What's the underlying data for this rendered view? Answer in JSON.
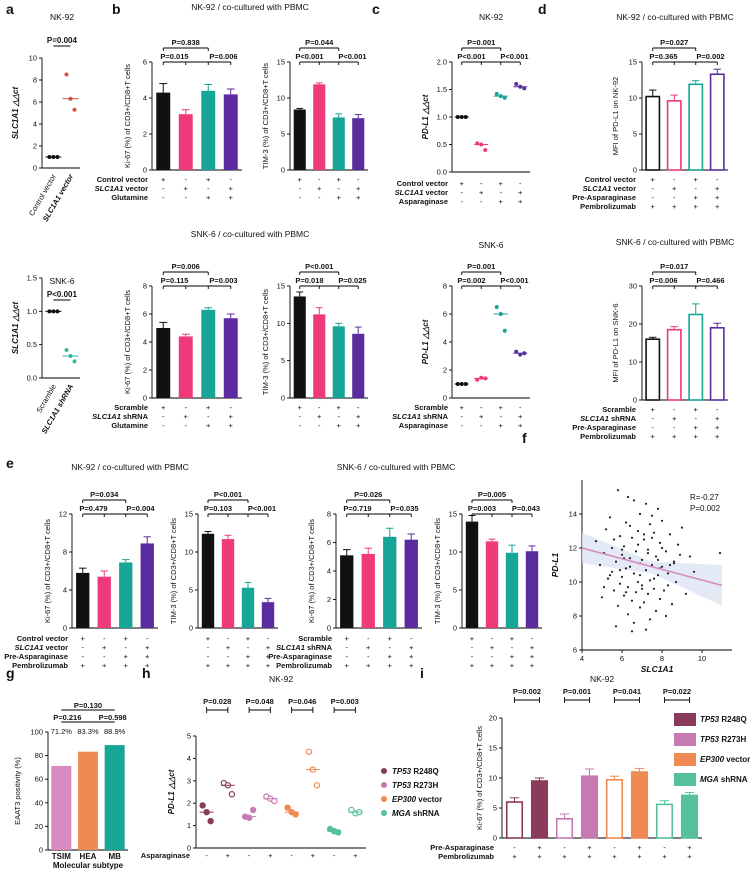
{
  "colors": {
    "black": "#111111",
    "pink": "#ee3a7a",
    "teal": "#16a597",
    "purple": "#5b2c9f",
    "red": "#d2553a",
    "cyan": "#35b8a6",
    "lightpink": "#d98ac0",
    "salmon": "#ef8a52",
    "maroon": "#8a3a5a",
    "mauve": "#c779b2",
    "orange": "#ef8a52",
    "green": "#55c09c"
  },
  "panels": {
    "a": "a",
    "b": "b",
    "c": "c",
    "d": "d",
    "e": "e",
    "f": "f",
    "g": "g",
    "h": "h",
    "i": "i"
  },
  "a": {
    "top": {
      "title": "NK-92",
      "ylabel": "SLC1A1 △△ct",
      "yticks": [
        "0",
        "2",
        "4",
        "6",
        "8",
        "10"
      ],
      "pvalue": "P=0.004",
      "groups": [
        "Control vector",
        "SLC1A1 vector"
      ],
      "points": [
        [
          1,
          1,
          1
        ],
        [
          8.5,
          6.3,
          5.3
        ]
      ],
      "medians": [
        1,
        6.3
      ]
    },
    "bottom": {
      "title": "SNK-6",
      "ylabel": "SLC1A1 △△ct",
      "yticks": [
        "0.0",
        "0.5",
        "1.0",
        "1.5"
      ],
      "pvalue": "P<0.001",
      "groups": [
        "Scramble",
        "SLC1A1 shRNA"
      ],
      "points": [
        [
          1,
          1,
          1
        ],
        [
          0.42,
          0.33,
          0.25
        ]
      ],
      "medians": [
        1,
        0.33
      ]
    }
  },
  "b": {
    "top_title": "NK-92 / co-cultured with PBMC",
    "bottom_title": "SNK-6 / co-cultured with PBMC",
    "ki67_top": {
      "ylabel": "Ki-67 (%) of CD3+/CD8+T cells",
      "yticks": [
        "0",
        "2",
        "4",
        "6"
      ],
      "values": [
        4.3,
        3.1,
        4.4,
        4.2
      ],
      "errors": [
        0.5,
        0.25,
        0.35,
        0.3
      ],
      "p_top": "P=0.838",
      "p_left": "P=0.015",
      "p_right": "P=0.006"
    },
    "tim3_top": {
      "ylabel": "TIM-3 (%) of CD3+/CD8+T cells",
      "yticks": [
        "0",
        "5",
        "10",
        "15"
      ],
      "values": [
        8.4,
        11.9,
        7.3,
        7.2
      ],
      "errors": [
        0.15,
        0.2,
        0.5,
        0.5
      ],
      "p_top": "P=0.044",
      "p_left": "P<0.001",
      "p_right": "P<0.001"
    },
    "ki67_bot": {
      "ylabel": "Ki-67 (%) of CD3+/CD8+T cells",
      "yticks": [
        "0",
        "2",
        "4",
        "6",
        "8"
      ],
      "values": [
        5.0,
        4.4,
        6.3,
        5.7
      ],
      "errors": [
        0.4,
        0.15,
        0.15,
        0.3
      ],
      "p_top": "P=0.006",
      "p_left": "P=0.115",
      "p_right": "P=0.003"
    },
    "tim3_bot": {
      "ylabel": "TIM-3 (%) of CD3+/CD8+T cells",
      "yticks": [
        "0",
        "5",
        "10",
        "15"
      ],
      "values": [
        13.6,
        11.2,
        9.6,
        8.6
      ],
      "errors": [
        0.6,
        0.9,
        0.4,
        0.9
      ],
      "p_top": "P<0.001",
      "p_left": "P=0.018",
      "p_right": "P=0.025"
    },
    "rows_top": [
      "Control vector",
      "SLC1A1 vector",
      "Glutamine"
    ],
    "rows_bot": [
      "Scramble",
      "SLC1A1 shRNA",
      "Glutamine"
    ],
    "signs": [
      [
        "+",
        "-",
        "+",
        "-"
      ],
      [
        "-",
        "+",
        "-",
        "+"
      ],
      [
        "-",
        "-",
        "+",
        "+"
      ]
    ]
  },
  "c": {
    "top": {
      "title": "NK-92",
      "ylabel": "PD-L1 △△ct",
      "yticks": [
        "0.0",
        "0.5",
        "1.0",
        "1.5",
        "2.0"
      ],
      "p_top": "P=0.001",
      "p_left": "P<0.001",
      "p_right": "P<0.001",
      "points": [
        [
          1,
          1,
          1
        ],
        [
          0.52,
          0.5,
          0.4
        ],
        [
          1.42,
          1.38,
          1.35
        ],
        [
          1.6,
          1.55,
          1.52
        ]
      ],
      "medians": [
        1,
        0.5,
        1.38,
        1.55
      ],
      "rows": [
        "Control vector",
        "SLC1A1 vector",
        "Asparaginase"
      ],
      "signs": [
        [
          "+",
          "-",
          "+",
          "-"
        ],
        [
          "-",
          "+",
          "-",
          "+"
        ],
        [
          "-",
          "-",
          "+",
          "+"
        ]
      ]
    },
    "bottom": {
      "title": "SNK-6",
      "ylabel": "PD-L1 △△ct",
      "yticks": [
        "0",
        "2",
        "4",
        "6",
        "8"
      ],
      "p_top": "P=0.001",
      "p_left": "P=0.002",
      "p_right": "P<0.001",
      "points": [
        [
          1,
          1,
          1
        ],
        [
          1.3,
          1.45,
          1.4
        ],
        [
          6.5,
          6.0,
          4.8
        ],
        [
          3.3,
          3.1,
          3.2
        ]
      ],
      "medians": [
        1,
        1.4,
        6.0,
        3.2
      ],
      "rows": [
        "Scramble",
        "SLC1A1 shRNA",
        "Asparaginase"
      ],
      "signs": [
        [
          "+",
          "-",
          "+",
          "-"
        ],
        [
          "-",
          "+",
          "-",
          "+"
        ],
        [
          "-",
          "-",
          "+",
          "+"
        ]
      ]
    }
  },
  "d": {
    "top": {
      "title": "NK-92 / co-cultured with PBMC",
      "ylabel": "MFI of PD-L1 on NK-92",
      "yticks": [
        "0",
        "5",
        "10",
        "15"
      ],
      "values": [
        10.2,
        9.6,
        11.9,
        13.3
      ],
      "errors": [
        0.9,
        0.8,
        0.5,
        0.7
      ],
      "p_top": "P=0.027",
      "p_left": "P=0.365",
      "p_right": "P=0.002",
      "rows": [
        "Control vector",
        "SLC1A1 vector",
        "Pre-Asparaginase",
        "Pembrolizumab"
      ]
    },
    "bottom": {
      "title": "SNK-6 / co-cultured with PBMC",
      "ylabel": "MFI of PD-L1 on SNK-6",
      "yticks": [
        "0",
        "10",
        "20",
        "30"
      ],
      "values": [
        16.0,
        18.5,
        22.5,
        19.0
      ],
      "errors": [
        0.5,
        0.8,
        2.8,
        1.2
      ],
      "p_top": "P=0.017",
      "p_left": "P=0.006",
      "p_right": "P=0.466",
      "rows": [
        "Scramble",
        "SLC1A1 shRNA",
        "Pre-Asparaginase",
        "Pembrolizumab"
      ]
    },
    "signs": [
      [
        "+",
        "-",
        "+",
        "-"
      ],
      [
        "-",
        "+",
        "-",
        "+"
      ],
      [
        "-",
        "-",
        "+",
        "+"
      ],
      [
        "+",
        "+",
        "+",
        "+"
      ]
    ]
  },
  "e": {
    "left_title": "NK-92 / co-cultured with PBMC",
    "right_title": "SNK-6 / co-cultured with PBMC",
    "ki67_l": {
      "ylabel": "Ki-67 (%) of CD3+/CD8+T cells",
      "yticks": [
        "0",
        "4",
        "8",
        "12"
      ],
      "values": [
        5.8,
        5.4,
        6.9,
        8.9
      ],
      "errors": [
        0.5,
        0.6,
        0.3,
        0.7
      ],
      "p_top": "P=0.034",
      "p_left": "P=0.479",
      "p_right": "P=0.004"
    },
    "tim3_l": {
      "ylabel": "TIM-3 (%) of CD3+/CD8+T cells",
      "yticks": [
        "0",
        "5",
        "10",
        "15"
      ],
      "values": [
        12.4,
        11.7,
        5.3,
        3.4
      ],
      "errors": [
        0.3,
        0.5,
        0.7,
        0.5
      ],
      "p_top": "P<0.001",
      "p_left": "P=0.103",
      "p_right": "P<0.001"
    },
    "ki67_r": {
      "ylabel": "Ki-67 (%) of CD3+/CD8+T cells",
      "yticks": [
        "0",
        "2",
        "4",
        "6",
        "8"
      ],
      "values": [
        5.1,
        5.2,
        6.4,
        6.2
      ],
      "errors": [
        0.4,
        0.4,
        0.6,
        0.4
      ],
      "p_top": "P=0.026",
      "p_left": "P=0.719",
      "p_right": "P=0.035"
    },
    "tim3_r": {
      "ylabel": "TIM-3 (%) of CD3+/CD8+T cells",
      "yticks": [
        "0",
        "5",
        "10",
        "15"
      ],
      "values": [
        14.0,
        11.4,
        9.9,
        10.1
      ],
      "errors": [
        0.8,
        0.3,
        1.0,
        0.7
      ],
      "p_top": "P=0.005",
      "p_left": "P=0.003",
      "p_right": "P=0.043"
    },
    "rows_l": [
      "Control vector",
      "SLC1A1 vector",
      "Pre-Asparaginase",
      "Pembrolizumab"
    ],
    "rows_r": [
      "Scramble",
      "SLC1A1 shRNA",
      "Pre-Asparaginase",
      "Pembrolizumab"
    ],
    "signs": [
      [
        "+",
        "-",
        "+",
        "-"
      ],
      [
        "-",
        "+",
        "-",
        "+"
      ],
      [
        "-",
        "-",
        "+",
        "+"
      ],
      [
        "+",
        "+",
        "+",
        "+"
      ]
    ]
  },
  "f": {
    "r_label": "R=-0.27",
    "p_label": "P=0.002",
    "xlabel": "SLC1A1",
    "ylabel": "PD-L1",
    "xticks": [
      "4",
      "6",
      "8",
      "10"
    ],
    "yticks": [
      "6",
      "8",
      "10",
      "12",
      "14"
    ],
    "xlim": [
      4,
      11.5
    ],
    "ylim": [
      6,
      16
    ],
    "fit": [
      [
        4,
        12.0
      ],
      [
        11,
        9.8
      ]
    ],
    "points": [
      [
        5.8,
        15.4
      ],
      [
        6.3,
        15.0
      ],
      [
        6.6,
        14.8
      ],
      [
        7.2,
        14.6
      ],
      [
        7.8,
        14.3
      ],
      [
        6.9,
        14.0
      ],
      [
        7.5,
        13.9
      ],
      [
        5.4,
        13.8
      ],
      [
        8.0,
        13.6
      ],
      [
        6.2,
        13.5
      ],
      [
        7.4,
        13.4
      ],
      [
        9.0,
        13.2
      ],
      [
        5.2,
        13.1
      ],
      [
        6.8,
        13.0
      ],
      [
        7.6,
        12.9
      ],
      [
        8.4,
        12.8
      ],
      [
        5.9,
        12.7
      ],
      [
        6.5,
        12.6
      ],
      [
        7.1,
        12.5
      ],
      [
        4.7,
        12.4
      ],
      [
        7.9,
        12.3
      ],
      [
        8.8,
        12.2
      ],
      [
        6.1,
        12.1
      ],
      [
        5.5,
        12.0
      ],
      [
        7.3,
        11.9
      ],
      [
        6.7,
        11.8
      ],
      [
        8.2,
        11.8
      ],
      [
        5.1,
        11.7
      ],
      [
        6.0,
        11.6
      ],
      [
        7.7,
        11.5
      ],
      [
        9.4,
        11.5
      ],
      [
        6.4,
        11.4
      ],
      [
        7.0,
        11.3
      ],
      [
        5.7,
        11.2
      ],
      [
        8.6,
        11.2
      ],
      [
        6.9,
        11.1
      ],
      [
        7.5,
        11.0
      ],
      [
        4.9,
        11.0
      ],
      [
        8.0,
        10.9
      ],
      [
        6.2,
        10.8
      ],
      [
        7.2,
        10.7
      ],
      [
        5.5,
        10.6
      ],
      [
        6.6,
        10.5
      ],
      [
        8.3,
        10.5
      ],
      [
        7.8,
        10.4
      ],
      [
        6.0,
        10.3
      ],
      [
        5.3,
        10.2
      ],
      [
        7.4,
        10.1
      ],
      [
        6.8,
        10.0
      ],
      [
        8.7,
        10.0
      ],
      [
        5.9,
        9.9
      ],
      [
        7.0,
        9.8
      ],
      [
        6.3,
        9.7
      ],
      [
        7.6,
        9.6
      ],
      [
        5.6,
        9.5
      ],
      [
        8.1,
        9.5
      ],
      [
        6.7,
        9.4
      ],
      [
        7.3,
        9.3
      ],
      [
        9.2,
        9.3
      ],
      [
        6.1,
        9.2
      ],
      [
        5.0,
        9.1
      ],
      [
        7.9,
        9.0
      ],
      [
        6.5,
        8.9
      ],
      [
        7.1,
        8.8
      ],
      [
        8.5,
        8.7
      ],
      [
        5.8,
        8.6
      ],
      [
        6.9,
        8.5
      ],
      [
        7.7,
        8.3
      ],
      [
        6.3,
        8.1
      ],
      [
        8.2,
        8.0
      ],
      [
        7.4,
        7.8
      ],
      [
        6.6,
        7.6
      ],
      [
        5.7,
        7.4
      ],
      [
        7.2,
        7.2
      ],
      [
        6.0,
        11.9
      ],
      [
        8.9,
        11.6
      ],
      [
        7.5,
        12.6
      ],
      [
        6.4,
        10.9
      ],
      [
        5.4,
        10.4
      ],
      [
        7.0,
        9.6
      ],
      [
        8.6,
        11.1
      ],
      [
        6.8,
        12.2
      ],
      [
        7.6,
        10.2
      ],
      [
        5.9,
        10.7
      ],
      [
        6.2,
        9.4
      ],
      [
        8.0,
        12.0
      ],
      [
        10.9,
        11.7
      ],
      [
        7.3,
        11.7
      ],
      [
        6.5,
        7.1
      ],
      [
        7.8,
        11.3
      ],
      [
        5.1,
        9.7
      ],
      [
        6.9,
        10.4
      ],
      [
        8.3,
        9.8
      ],
      [
        6.1,
        11.4
      ],
      [
        7.1,
        12.8
      ],
      [
        9.6,
        10.6
      ],
      [
        5.6,
        12.5
      ],
      [
        7.9,
        10.8
      ],
      [
        6.4,
        13.3
      ],
      [
        8.4,
        11.0
      ]
    ]
  },
  "g": {
    "ylabel": "EAAT3 positivity (%)",
    "xlabel": "Molecular subtype",
    "categories": [
      "TSIM",
      "HEA",
      "MB"
    ],
    "values": [
      71.2,
      83.3,
      88.9
    ],
    "value_labels": [
      "71.2%",
      "83.3%",
      "88.9%"
    ],
    "yticks": [
      "0",
      "20",
      "40",
      "60",
      "80",
      "100"
    ],
    "p_top": "P=0.130",
    "p_left": "P=0.216",
    "p_right": "P=0.598"
  },
  "h": {
    "title": "NK-92",
    "ylabel": "PD-L1 △△ct",
    "yticks": [
      "0",
      "1",
      "2",
      "3",
      "4",
      "5"
    ],
    "xrow_label": "Asparaginase",
    "signs": [
      "-",
      "+",
      "-",
      "+",
      "-",
      "+",
      "-",
      "+"
    ],
    "pvalues": [
      "P=0.028",
      "P=0.048",
      "P=0.046",
      "P=0.003"
    ],
    "legend": [
      "TP53 R248Q",
      "TP53 R273H",
      "EP300 vector",
      "MGA shRNA"
    ],
    "points": [
      [
        1.9,
        1.6,
        1.2
      ],
      [
        2.9,
        2.8,
        2.4
      ],
      [
        1.4,
        1.35,
        1.7
      ],
      [
        2.3,
        2.2,
        2.1
      ],
      [
        1.8,
        1.6,
        1.5
      ],
      [
        4.3,
        3.5,
        2.8
      ],
      [
        0.85,
        0.75,
        0.7
      ],
      [
        1.7,
        1.55,
        1.6
      ]
    ],
    "medians": [
      1.6,
      2.8,
      1.4,
      2.2,
      1.6,
      3.5,
      0.75,
      1.6
    ]
  },
  "i": {
    "title": "NK-92",
    "ylabel": "Ki-67 (%) of CD3+/CD8+T cells",
    "yticks": [
      "0",
      "5",
      "10",
      "15",
      "20"
    ],
    "rows": [
      "Pre-Asparaginase",
      "Pembrolizumab"
    ],
    "signs": [
      [
        "-",
        "+",
        "-",
        "+",
        "-",
        "+",
        "-",
        "+"
      ],
      [
        "+",
        "+",
        "+",
        "+",
        "+",
        "+",
        "+",
        "+"
      ]
    ],
    "pvalues": [
      "P=0.002",
      "P=0.001",
      "P=0.041",
      "P=0.022"
    ],
    "legend": [
      "TP53 R248Q",
      "TP53 R273H",
      "EP300 vector",
      "MGA shRNA"
    ],
    "values": [
      6.0,
      9.5,
      3.2,
      10.3,
      9.7,
      11.0,
      5.6,
      7.1
    ],
    "errors": [
      0.7,
      0.5,
      0.8,
      1.2,
      0.6,
      0.6,
      0.6,
      0.5
    ]
  }
}
